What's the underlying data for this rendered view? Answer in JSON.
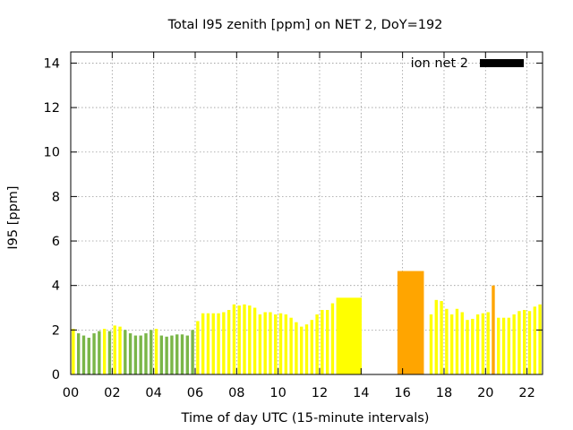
{
  "chart_data": {
    "type": "bar",
    "title": "Total I95 zenith [ppm] on NET 2, DoY=192",
    "xlabel": "Time of day UTC (15-minute intervals)",
    "ylabel": "I95 [ppm]",
    "xlim": [
      0,
      22.75
    ],
    "ylim": [
      0,
      14.5
    ],
    "xticks": [
      0,
      2,
      4,
      6,
      8,
      10,
      12,
      14,
      16,
      18,
      20,
      22
    ],
    "xtick_labels": [
      "00",
      "02",
      "04",
      "06",
      "08",
      "10",
      "12",
      "14",
      "16",
      "18",
      "20",
      "22"
    ],
    "yticks": [
      0,
      2,
      4,
      6,
      8,
      10,
      12,
      14
    ],
    "ytick_labels": [
      "0",
      "2",
      "4",
      "6",
      "8",
      "10",
      "12",
      "14"
    ],
    "grid": true,
    "legend": {
      "label": "ion net 2",
      "color": "#000000",
      "position": "top-right"
    },
    "colors": {
      "green": "#7ab648",
      "yellow": "#ffff00",
      "orange": "#ffa500"
    },
    "bars": [
      {
        "x": 0.0,
        "w": 0.25,
        "y": 2.05,
        "c": "yellow"
      },
      {
        "x": 0.25,
        "w": 0.25,
        "y": 1.85,
        "c": "green"
      },
      {
        "x": 0.5,
        "w": 0.25,
        "y": 1.75,
        "c": "green"
      },
      {
        "x": 0.75,
        "w": 0.25,
        "y": 1.65,
        "c": "green"
      },
      {
        "x": 1.0,
        "w": 0.25,
        "y": 1.85,
        "c": "green"
      },
      {
        "x": 1.25,
        "w": 0.25,
        "y": 1.95,
        "c": "green"
      },
      {
        "x": 1.5,
        "w": 0.25,
        "y": 2.05,
        "c": "yellow"
      },
      {
        "x": 1.75,
        "w": 0.25,
        "y": 1.95,
        "c": "green"
      },
      {
        "x": 2.0,
        "w": 0.25,
        "y": 2.2,
        "c": "yellow"
      },
      {
        "x": 2.25,
        "w": 0.25,
        "y": 2.15,
        "c": "yellow"
      },
      {
        "x": 2.5,
        "w": 0.25,
        "y": 2.0,
        "c": "green"
      },
      {
        "x": 2.75,
        "w": 0.25,
        "y": 1.85,
        "c": "green"
      },
      {
        "x": 3.0,
        "w": 0.25,
        "y": 1.75,
        "c": "green"
      },
      {
        "x": 3.25,
        "w": 0.25,
        "y": 1.75,
        "c": "green"
      },
      {
        "x": 3.5,
        "w": 0.25,
        "y": 1.85,
        "c": "green"
      },
      {
        "x": 3.75,
        "w": 0.25,
        "y": 2.0,
        "c": "green"
      },
      {
        "x": 4.0,
        "w": 0.25,
        "y": 2.05,
        "c": "yellow"
      },
      {
        "x": 4.25,
        "w": 0.25,
        "y": 1.75,
        "c": "green"
      },
      {
        "x": 4.5,
        "w": 0.25,
        "y": 1.7,
        "c": "green"
      },
      {
        "x": 4.75,
        "w": 0.25,
        "y": 1.75,
        "c": "green"
      },
      {
        "x": 5.0,
        "w": 0.25,
        "y": 1.8,
        "c": "green"
      },
      {
        "x": 5.25,
        "w": 0.25,
        "y": 1.8,
        "c": "green"
      },
      {
        "x": 5.5,
        "w": 0.25,
        "y": 1.75,
        "c": "green"
      },
      {
        "x": 5.75,
        "w": 0.25,
        "y": 2.0,
        "c": "green"
      },
      {
        "x": 6.0,
        "w": 0.25,
        "y": 2.4,
        "c": "yellow"
      },
      {
        "x": 6.25,
        "w": 0.25,
        "y": 2.75,
        "c": "yellow"
      },
      {
        "x": 6.5,
        "w": 0.25,
        "y": 2.75,
        "c": "yellow"
      },
      {
        "x": 6.75,
        "w": 0.25,
        "y": 2.75,
        "c": "yellow"
      },
      {
        "x": 7.0,
        "w": 0.25,
        "y": 2.75,
        "c": "yellow"
      },
      {
        "x": 7.25,
        "w": 0.25,
        "y": 2.8,
        "c": "yellow"
      },
      {
        "x": 7.5,
        "w": 0.25,
        "y": 2.9,
        "c": "yellow"
      },
      {
        "x": 7.75,
        "w": 0.25,
        "y": 3.15,
        "c": "yellow"
      },
      {
        "x": 8.0,
        "w": 0.25,
        "y": 3.1,
        "c": "yellow"
      },
      {
        "x": 8.25,
        "w": 0.25,
        "y": 3.15,
        "c": "yellow"
      },
      {
        "x": 8.5,
        "w": 0.25,
        "y": 3.1,
        "c": "yellow"
      },
      {
        "x": 8.75,
        "w": 0.25,
        "y": 3.0,
        "c": "yellow"
      },
      {
        "x": 9.0,
        "w": 0.25,
        "y": 2.7,
        "c": "yellow"
      },
      {
        "x": 9.25,
        "w": 0.25,
        "y": 2.8,
        "c": "yellow"
      },
      {
        "x": 9.5,
        "w": 0.25,
        "y": 2.8,
        "c": "yellow"
      },
      {
        "x": 9.75,
        "w": 0.25,
        "y": 2.7,
        "c": "yellow"
      },
      {
        "x": 10.0,
        "w": 0.25,
        "y": 2.75,
        "c": "yellow"
      },
      {
        "x": 10.25,
        "w": 0.25,
        "y": 2.7,
        "c": "yellow"
      },
      {
        "x": 10.5,
        "w": 0.25,
        "y": 2.55,
        "c": "yellow"
      },
      {
        "x": 10.75,
        "w": 0.25,
        "y": 2.35,
        "c": "yellow"
      },
      {
        "x": 11.0,
        "w": 0.25,
        "y": 2.15,
        "c": "yellow"
      },
      {
        "x": 11.25,
        "w": 0.25,
        "y": 2.25,
        "c": "yellow"
      },
      {
        "x": 11.5,
        "w": 0.25,
        "y": 2.45,
        "c": "yellow"
      },
      {
        "x": 11.75,
        "w": 0.25,
        "y": 2.7,
        "c": "yellow"
      },
      {
        "x": 12.0,
        "w": 0.25,
        "y": 2.9,
        "c": "yellow"
      },
      {
        "x": 12.25,
        "w": 0.25,
        "y": 2.9,
        "c": "yellow"
      },
      {
        "x": 12.5,
        "w": 0.25,
        "y": 3.2,
        "c": "yellow"
      },
      {
        "x": 12.75,
        "w": 1.33,
        "y": 3.45,
        "c": "yellow"
      },
      {
        "x": 15.7,
        "w": 1.38,
        "y": 4.65,
        "c": "orange"
      },
      {
        "x": 17.25,
        "w": 0.25,
        "y": 2.7,
        "c": "yellow"
      },
      {
        "x": 17.5,
        "w": 0.25,
        "y": 3.35,
        "c": "yellow"
      },
      {
        "x": 17.75,
        "w": 0.25,
        "y": 3.3,
        "c": "yellow"
      },
      {
        "x": 18.0,
        "w": 0.25,
        "y": 2.95,
        "c": "yellow"
      },
      {
        "x": 18.25,
        "w": 0.25,
        "y": 2.7,
        "c": "yellow"
      },
      {
        "x": 18.5,
        "w": 0.25,
        "y": 2.95,
        "c": "yellow"
      },
      {
        "x": 18.75,
        "w": 0.25,
        "y": 2.8,
        "c": "yellow"
      },
      {
        "x": 19.0,
        "w": 0.25,
        "y": 2.45,
        "c": "yellow"
      },
      {
        "x": 19.25,
        "w": 0.25,
        "y": 2.5,
        "c": "yellow"
      },
      {
        "x": 19.5,
        "w": 0.25,
        "y": 2.7,
        "c": "yellow"
      },
      {
        "x": 19.75,
        "w": 0.25,
        "y": 2.75,
        "c": "yellow"
      },
      {
        "x": 20.0,
        "w": 0.25,
        "y": 2.8,
        "c": "yellow"
      },
      {
        "x": 20.25,
        "w": 0.25,
        "y": 4.0,
        "c": "orange"
      },
      {
        "x": 20.5,
        "w": 0.25,
        "y": 2.55,
        "c": "yellow"
      },
      {
        "x": 20.75,
        "w": 0.25,
        "y": 2.55,
        "c": "yellow"
      },
      {
        "x": 21.0,
        "w": 0.25,
        "y": 2.55,
        "c": "yellow"
      },
      {
        "x": 21.25,
        "w": 0.25,
        "y": 2.7,
        "c": "yellow"
      },
      {
        "x": 21.5,
        "w": 0.25,
        "y": 2.85,
        "c": "yellow"
      },
      {
        "x": 21.75,
        "w": 0.25,
        "y": 2.9,
        "c": "yellow"
      },
      {
        "x": 22.0,
        "w": 0.25,
        "y": 2.85,
        "c": "yellow"
      },
      {
        "x": 22.25,
        "w": 0.25,
        "y": 3.05,
        "c": "yellow"
      },
      {
        "x": 22.5,
        "w": 0.25,
        "y": 3.15,
        "c": "yellow"
      }
    ]
  }
}
